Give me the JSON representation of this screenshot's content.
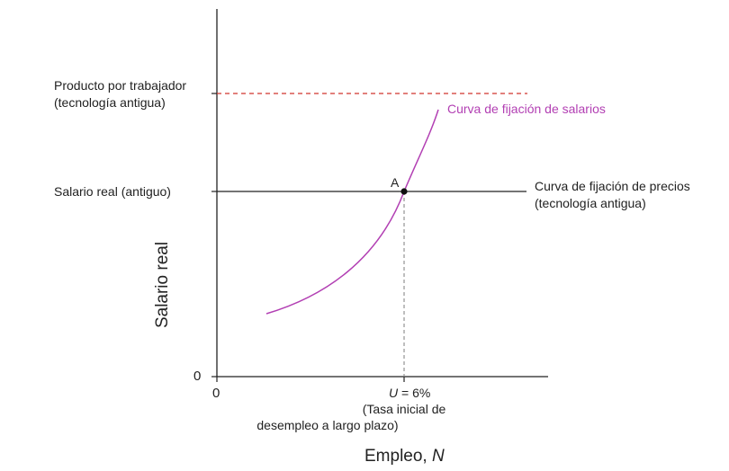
{
  "labels": {
    "product_per_worker_line1": "Producto por trabajador",
    "product_per_worker_line2": "(tecnología antigua)",
    "real_wage_old": "Salario real (antiguo)",
    "zero_y": "0",
    "zero_x": "0",
    "wage_setting_curve": "Curva de fijación de salarios",
    "price_setting_line1": "Curva de fijación de precios",
    "price_setting_line2": "(tecnología antigua)",
    "point_a": "A",
    "u_var": "U",
    "u_value": " = 6%",
    "u_note_line1": "(Tasa inicial de",
    "u_note_line2": "desempleo a largo plazo)",
    "y_axis_title": "Salario real",
    "x_axis_title_text": "Empleo, ",
    "x_axis_title_var": "N"
  },
  "colors": {
    "axis": "#222222",
    "price_setting": "#222222",
    "wage_setting": "#b23fb3",
    "product_per_worker": "#d0342c",
    "guide": "#888888"
  }
}
